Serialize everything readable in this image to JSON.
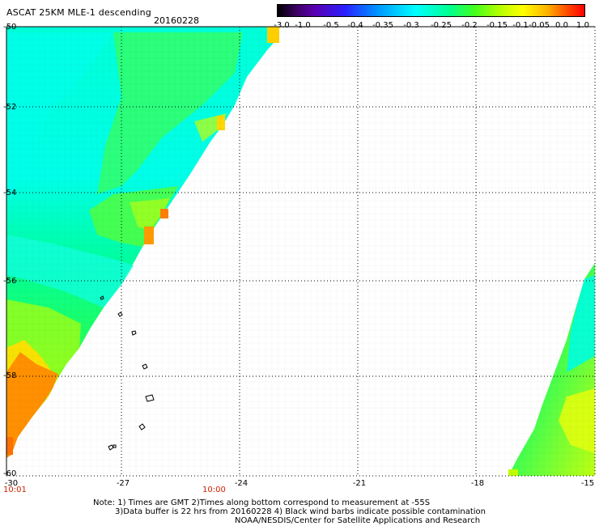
{
  "header": {
    "title": "ASCAT 25KM MLE-1 descending",
    "date": "20160228"
  },
  "colorbar": {
    "labels": [
      "-3.0",
      "-1.0",
      "-0.5",
      "-0.4",
      "-0.35",
      "-0.3",
      "-0.25",
      "-0.2",
      "-0.15",
      "-0.1",
      "-0.05",
      "0.0",
      "1.0"
    ]
  },
  "axes": {
    "lat_labels": [
      "-50",
      "-52",
      "-54",
      "-56",
      "-58",
      "-60"
    ],
    "lon_labels": [
      "-30",
      "-27",
      "-24",
      "-21",
      "-18",
      "-15"
    ],
    "time_labels": [
      "10:01",
      "10:00"
    ]
  },
  "notes": {
    "line1": "Note: 1) Times are GMT 2)Times along bottom correspond to measurement at -55S",
    "line2": "3)Data buffer is 22 hrs from 20160228 4) Black wind barbs indicate possible contamination",
    "line3": "NOAA/NESDIS/Center for Satellite Applications and Research"
  },
  "colors": {
    "cyan": "#00ffe0",
    "green": "#00ff80",
    "yellow_green": "#80ff00",
    "yellow": "#ffff00",
    "orange": "#ff8c00"
  }
}
